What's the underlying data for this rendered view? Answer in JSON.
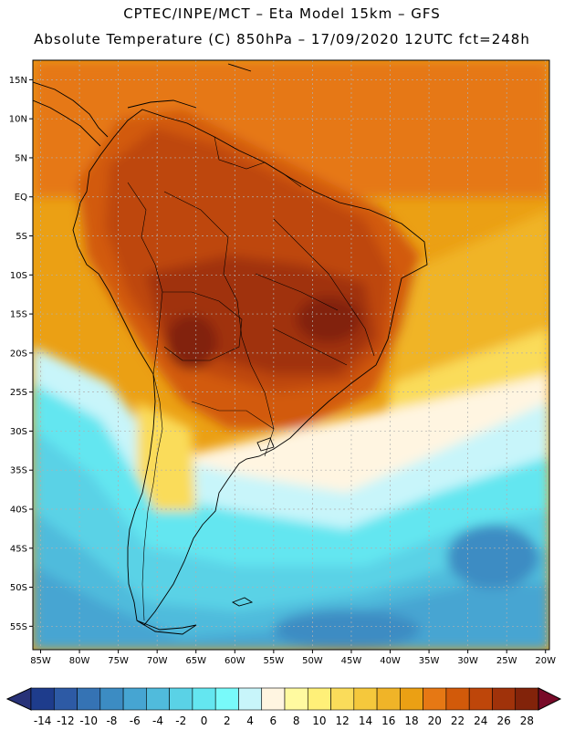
{
  "header": {
    "line1": "CPTEC/INPE/MCT –  Eta Model 15km – GFS",
    "line2": "Absolute Temperature (C) 850hPa – 17/09/2020 12UTC fct=248h"
  },
  "map": {
    "lat_labels": [
      "15N",
      "10N",
      "5N",
      "EQ",
      "5S",
      "10S",
      "15S",
      "20S",
      "25S",
      "30S",
      "35S",
      "40S",
      "45S",
      "50S",
      "55S"
    ],
    "lon_labels": [
      "85W",
      "80W",
      "75W",
      "70W",
      "65W",
      "60W",
      "55W",
      "50W",
      "45W",
      "40W",
      "35W",
      "30W",
      "25W",
      "20W"
    ]
  },
  "colorbar": {
    "ticks": [
      "-14",
      "-12",
      "-10",
      "-8",
      "-6",
      "-4",
      "-2",
      "0",
      "2",
      "4",
      "6",
      "8",
      "10",
      "12",
      "14",
      "16",
      "18",
      "20",
      "22",
      "24",
      "26",
      "28"
    ],
    "colors": [
      "#1e3c8c",
      "#2d5aa5",
      "#3573b4",
      "#3c8cc3",
      "#46a5d2",
      "#50bbdc",
      "#5ad2e6",
      "#64e6f0",
      "#78fafa",
      "#c8f5fa",
      "#fff5e1",
      "#fffaa0",
      "#fff078",
      "#fadc5a",
      "#f5c83c",
      "#f0b428",
      "#eba014",
      "#e67814",
      "#d25a0a",
      "#be460a",
      "#a0320a",
      "#82230a"
    ],
    "under_color": "#283278",
    "over_color": "#780a28"
  }
}
